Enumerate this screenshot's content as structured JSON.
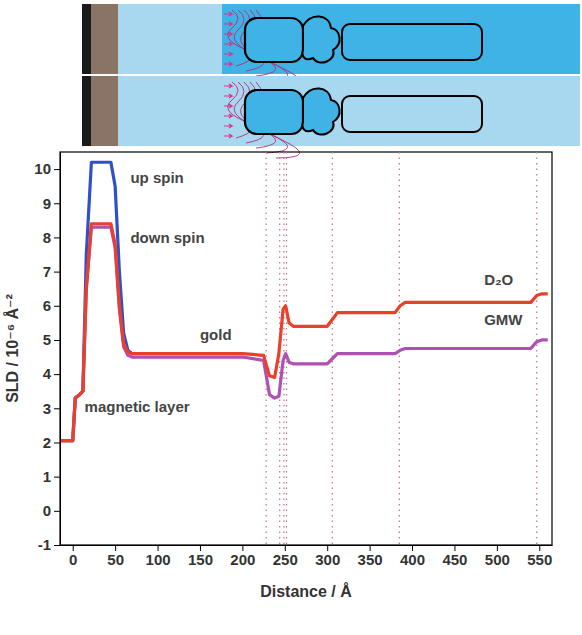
{
  "chart_data": {
    "type": "line",
    "x": [
      -15,
      0,
      3,
      8,
      12,
      16,
      22,
      45,
      50,
      55,
      60,
      65,
      70,
      100,
      200,
      225,
      232,
      238,
      243,
      248,
      251,
      255,
      260,
      300,
      306,
      312,
      380,
      386,
      392,
      540,
      547,
      553,
      560
    ],
    "series": [
      {
        "name": "up spin",
        "color": "#3050c8",
        "values": [
          2.05,
          2.05,
          3.3,
          3.4,
          3.5,
          7.5,
          10.2,
          10.2,
          9.5,
          7.0,
          5.2,
          4.7,
          4.6,
          null,
          null,
          null,
          null,
          null,
          null,
          null,
          null,
          null,
          null,
          null,
          null,
          null,
          null,
          null,
          null,
          null,
          null,
          null,
          null
        ]
      },
      {
        "name": "GMW",
        "color": "#b050b0",
        "values": [
          2.05,
          2.05,
          3.3,
          3.4,
          3.5,
          6.5,
          8.3,
          8.3,
          7.7,
          5.9,
          4.8,
          4.55,
          4.5,
          4.5,
          4.5,
          4.4,
          3.4,
          3.3,
          3.35,
          4.4,
          4.6,
          4.35,
          4.3,
          4.3,
          4.45,
          4.6,
          4.6,
          4.7,
          4.75,
          4.75,
          4.95,
          5.0,
          5.0
        ]
      },
      {
        "name": "D₂O",
        "color": "#e8402a",
        "values": [
          2.05,
          2.05,
          3.3,
          3.4,
          3.5,
          6.5,
          8.4,
          8.4,
          7.8,
          6.0,
          4.9,
          4.65,
          4.6,
          4.6,
          4.6,
          4.55,
          3.95,
          3.9,
          4.6,
          5.9,
          6.0,
          5.5,
          5.4,
          5.4,
          5.6,
          5.8,
          5.8,
          6.0,
          6.1,
          6.1,
          6.3,
          6.35,
          6.35
        ]
      }
    ],
    "annotations": [
      "down spin",
      "gold",
      "magnetic layer"
    ],
    "vlines": [
      228,
      244,
      249,
      252,
      306,
      385,
      547
    ],
    "xlabel": "Distance / Å",
    "ylabel": "SLD / 10⁻⁶ Å⁻²",
    "xlim": [
      -15,
      565
    ],
    "ylim": [
      -1,
      10.5
    ],
    "xticks": [
      0,
      50,
      100,
      150,
      200,
      250,
      300,
      350,
      400,
      450,
      500,
      550
    ],
    "yticks": [
      -1,
      0,
      1,
      2,
      3,
      4,
      5,
      6,
      7,
      8,
      9,
      10
    ],
    "grid": false
  }
}
